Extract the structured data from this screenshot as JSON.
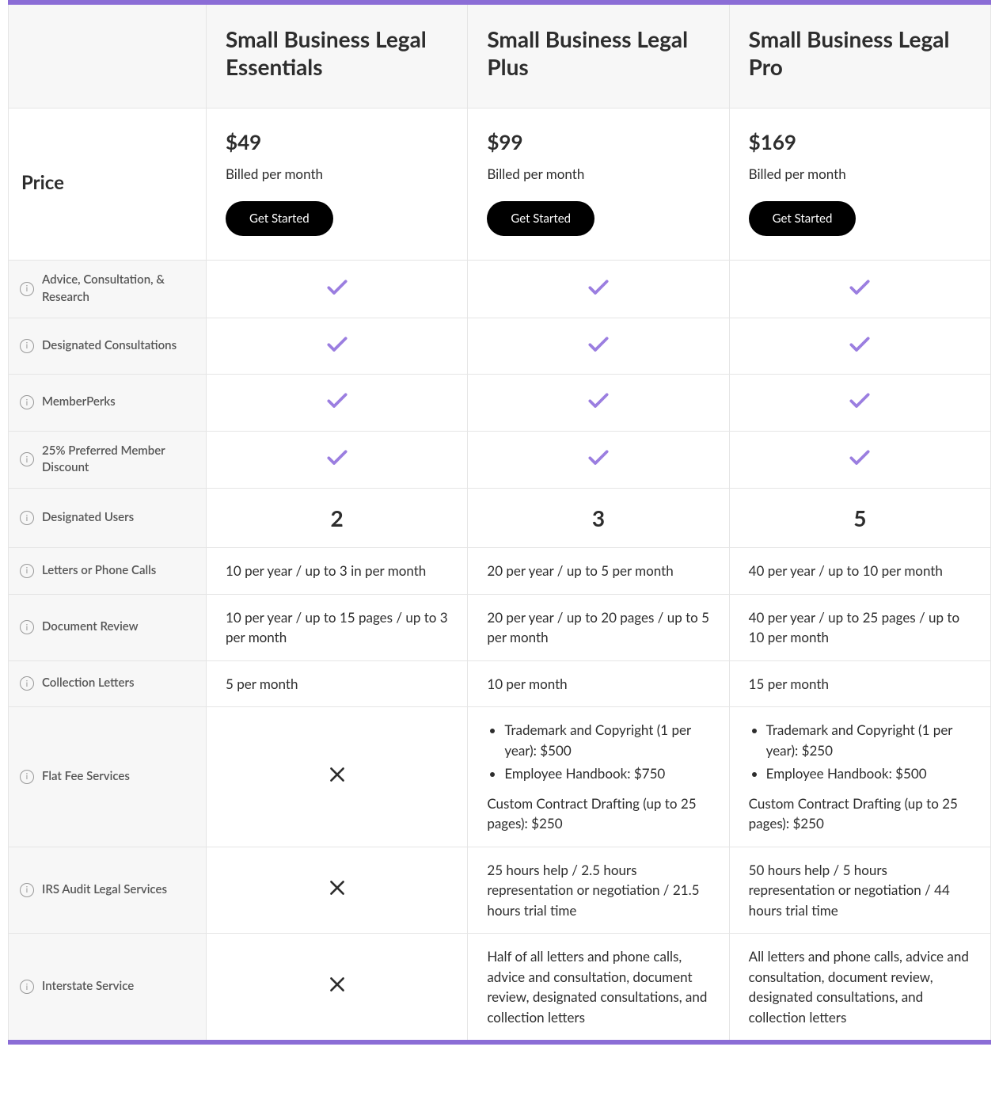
{
  "colors": {
    "accent": "#8b6dd6",
    "check": "#9b7ee0",
    "cross": "#2d2d2d",
    "border": "#e5e5e5",
    "header_bg": "#f7f7f7",
    "label_bg": "#f7f7f7",
    "cta_bg": "#000000",
    "cta_text": "#ffffff"
  },
  "table": {
    "type": "pricing-comparison-table",
    "plans": [
      {
        "name": "Small Business Legal Essentials",
        "price": "$49",
        "billing": "Billed per month",
        "cta": "Get Started"
      },
      {
        "name": "Small Business Legal Plus",
        "price": "$99",
        "billing": "Billed per month",
        "cta": "Get Started"
      },
      {
        "name": "Small Business Legal Pro",
        "price": "$169",
        "billing": "Billed per month",
        "cta": "Get Started"
      }
    ],
    "price_row_label": "Price",
    "features": [
      {
        "label": "Advice, Consultation, & Research",
        "values": [
          {
            "type": "check"
          },
          {
            "type": "check"
          },
          {
            "type": "check"
          }
        ]
      },
      {
        "label": "Designated Consultations",
        "values": [
          {
            "type": "check"
          },
          {
            "type": "check"
          },
          {
            "type": "check"
          }
        ]
      },
      {
        "label": "MemberPerks",
        "values": [
          {
            "type": "check"
          },
          {
            "type": "check"
          },
          {
            "type": "check"
          }
        ]
      },
      {
        "label": "25% Preferred Member Discount",
        "values": [
          {
            "type": "check"
          },
          {
            "type": "check"
          },
          {
            "type": "check"
          }
        ]
      },
      {
        "label": "Designated Users",
        "values": [
          {
            "type": "number",
            "value": "2"
          },
          {
            "type": "number",
            "value": "3"
          },
          {
            "type": "number",
            "value": "5"
          }
        ]
      },
      {
        "label": "Letters or Phone Calls",
        "values": [
          {
            "type": "text",
            "text": "10 per year / up to 3 in per month"
          },
          {
            "type": "text",
            "text": "20 per year / up to 5 per month"
          },
          {
            "type": "text",
            "text": "40 per year / up to 10 per month"
          }
        ]
      },
      {
        "label": "Document Review",
        "values": [
          {
            "type": "text",
            "text": "10 per year / up to 15 pages / up to 3 per month"
          },
          {
            "type": "text",
            "text": "20 per year / up to 20 pages / up to 5 per month"
          },
          {
            "type": "text",
            "text": "40 per year / up to 25 pages / up to 10 per month"
          }
        ]
      },
      {
        "label": "Collection Letters",
        "values": [
          {
            "type": "text",
            "text": "5 per month"
          },
          {
            "type": "text",
            "text": "10 per month"
          },
          {
            "type": "text",
            "text": "15 per month"
          }
        ]
      },
      {
        "label": "Flat Fee Services",
        "values": [
          {
            "type": "cross"
          },
          {
            "type": "list",
            "items": [
              "Trademark and Copyright (1 per year): $500",
              "Employee Handbook: $750"
            ],
            "extra": "Custom Contract Drafting (up to 25 pages): $250"
          },
          {
            "type": "list",
            "items": [
              "Trademark and Copyright (1 per year): $250",
              "Employee Handbook: $500"
            ],
            "extra": "Custom Contract Drafting (up to 25 pages): $250"
          }
        ]
      },
      {
        "label": "IRS Audit Legal Services",
        "values": [
          {
            "type": "cross"
          },
          {
            "type": "text",
            "text": "25 hours help / 2.5 hours representation or negotiation / 21.5 hours trial time"
          },
          {
            "type": "text",
            "text": "50 hours help / 5 hours representation or negotiation / 44 hours trial time"
          }
        ]
      },
      {
        "label": "Interstate Service",
        "values": [
          {
            "type": "cross"
          },
          {
            "type": "text",
            "text": "Half of all letters and phone calls, advice and consultation, document review, designated consultations, and collection letters"
          },
          {
            "type": "text",
            "text": "All letters and phone calls, advice and consultation, document review, designated consultations, and collection letters"
          }
        ]
      }
    ]
  }
}
